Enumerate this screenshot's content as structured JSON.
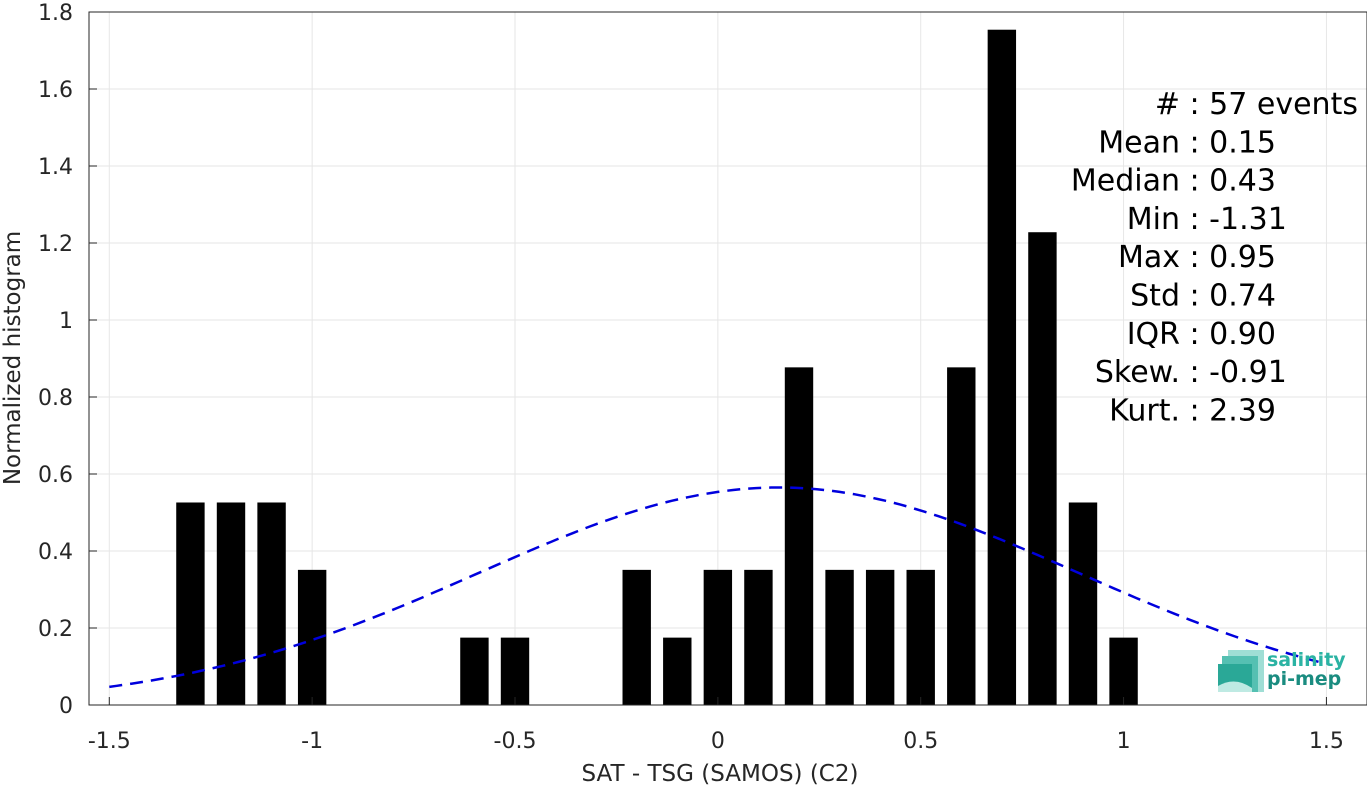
{
  "chart_data": {
    "type": "bar",
    "xlabel": "SAT - TSG (SAMOS) (C2)",
    "ylabel": "Normalized histogram",
    "xlim": [
      -1.55,
      1.6
    ],
    "ylim": [
      0,
      1.8
    ],
    "grid": true,
    "xticks": [
      "-1.5",
      "-1",
      "-0.5",
      "0",
      "0.5",
      "1",
      "1.5"
    ],
    "yticks": [
      "0",
      "0.2",
      "0.4",
      "0.6",
      "0.8",
      "1",
      "1.2",
      "1.4",
      "1.6",
      "1.8"
    ],
    "bar_width": 0.07,
    "bars": {
      "x": [
        -1.3,
        -1.2,
        -1.1,
        -1.0,
        -0.6,
        -0.5,
        -0.2,
        -0.1,
        0.0,
        0.1,
        0.2,
        0.3,
        0.4,
        0.5,
        0.6,
        0.7,
        0.8,
        0.9,
        1.0
      ],
      "values": [
        0.526,
        0.526,
        0.526,
        0.351,
        0.175,
        0.175,
        0.351,
        0.175,
        0.351,
        0.351,
        0.877,
        0.351,
        0.351,
        0.351,
        0.877,
        1.754,
        1.228,
        0.526,
        0.175
      ],
      "color": "#000000"
    },
    "fit_curve": {
      "style": "dashed",
      "color": "#0000dd",
      "mean": 0.15,
      "std": 0.74,
      "peak": 0.565,
      "x_range": [
        -1.5,
        1.5
      ]
    },
    "annotations": [
      "#  : 57 events",
      "Mean : 0.15",
      "Median : 0.43",
      "Min : -1.31",
      "Max : 0.95",
      "Std : 0.74",
      "IQR : 0.90",
      "Skew. : -0.91",
      "Kurt. : 2.39"
    ]
  },
  "logo": {
    "line1": "salinity",
    "line2": "pi-mep"
  }
}
